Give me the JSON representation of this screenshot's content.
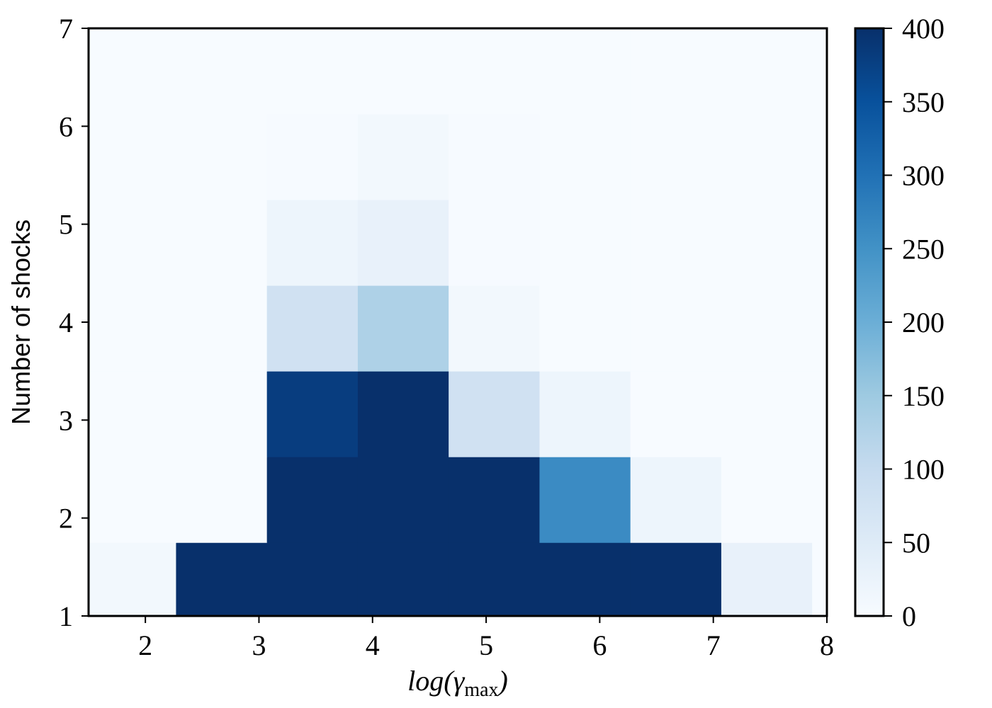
{
  "chart_data": {
    "type": "heatmap",
    "title": "",
    "xlabel": "log(γmax)",
    "xlabel_parts": {
      "base": "log(",
      "greek": "γ",
      "sub": "max",
      "close": ")"
    },
    "ylabel": "Number of shocks",
    "xlim": [
      1.5,
      8.0
    ],
    "ylim": [
      1,
      7
    ],
    "xticks": [
      2,
      3,
      4,
      5,
      6,
      7,
      8
    ],
    "yticks": [
      1,
      2,
      3,
      4,
      5,
      6,
      7
    ],
    "x_edges": [
      1.5,
      2.27,
      3.07,
      3.87,
      4.67,
      5.47,
      6.27,
      7.07,
      7.87,
      8.0
    ],
    "y_edges": [
      1.0,
      1.75,
      2.625,
      3.5,
      4.375,
      5.25,
      6.125,
      7.0
    ],
    "values": [
      [
        10,
        400,
        400,
        400,
        400,
        400,
        400,
        30,
        0
      ],
      [
        0,
        0,
        400,
        400,
        400,
        260,
        20,
        0,
        0
      ],
      [
        0,
        0,
        380,
        400,
        80,
        20,
        0,
        0,
        0
      ],
      [
        0,
        0,
        80,
        130,
        10,
        0,
        0,
        0,
        0
      ],
      [
        0,
        0,
        20,
        30,
        2,
        0,
        0,
        0,
        0
      ],
      [
        0,
        0,
        2,
        10,
        2,
        0,
        0,
        0,
        0
      ],
      [
        0,
        0,
        0,
        0,
        0,
        0,
        0,
        0,
        0
      ]
    ],
    "colorbar": {
      "colormap": "Blues",
      "range": [
        0,
        400
      ],
      "ticks": [
        0,
        50,
        100,
        150,
        200,
        250,
        300,
        350,
        400
      ]
    },
    "colors": {
      "frame": "#000000",
      "colormap_stops": [
        "#f7fbff",
        "#deebf7",
        "#c6dbef",
        "#9ecae1",
        "#6baed6",
        "#4292c6",
        "#2171b5",
        "#08519c",
        "#08306b"
      ]
    }
  }
}
